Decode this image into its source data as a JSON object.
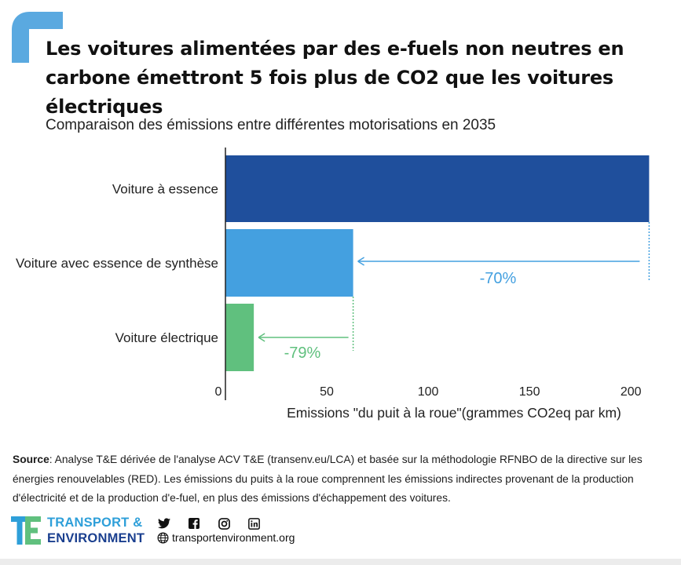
{
  "title": "Les voitures alimentées par des e-fuels non neutres en carbone émettront 5 fois plus de CO2 que les voitures électriques",
  "subtitle": "Comparaison des émissions entre différentes motorisations en 2035",
  "chart_data": {
    "type": "bar",
    "orientation": "horizontal",
    "categories": [
      "Voiture à essence",
      "Voiture avec essence de synthèse",
      "Voiture électrique"
    ],
    "values": [
      209,
      63,
      14
    ],
    "colors": [
      "#1f4f9c",
      "#44a0e0",
      "#60c07e"
    ],
    "xlabel": "Emissions \"du puit à la roue\"(grammes CO2eq par km)",
    "xlim": [
      0,
      210
    ],
    "xticks": [
      0,
      50,
      100,
      150,
      200
    ],
    "grid": false,
    "annotations": [
      {
        "text": "-70%",
        "color": "#44a0e0"
      },
      {
        "text": "-79%",
        "color": "#60c07e"
      }
    ]
  },
  "source": {
    "label": "Source",
    "text": ": Analyse T&E dérivée de l'analyse ACV T&E (transenv.eu/LCA) et basée sur la méthodologie RFNBO de la directive sur les énergies renouvelables (RED). Les émissions du puits à la roue comprennent les émissions indirectes provenant de la production d'électricité et de la production d'e-fuel, en plus des émissions d'échappement des voitures."
  },
  "footer": {
    "logo_line1": "TRANSPORT &",
    "logo_line2": "ENVIRONMENT",
    "socials": [
      "twitter-icon",
      "facebook-icon",
      "instagram-icon",
      "linkedin-icon"
    ],
    "website": "transportenvironment.org"
  },
  "colors": {
    "brand_light": "#2e9fd9",
    "brand_dark": "#1a3f8f",
    "brand_green": "#60c07e",
    "corner": "#5aa9e0"
  }
}
